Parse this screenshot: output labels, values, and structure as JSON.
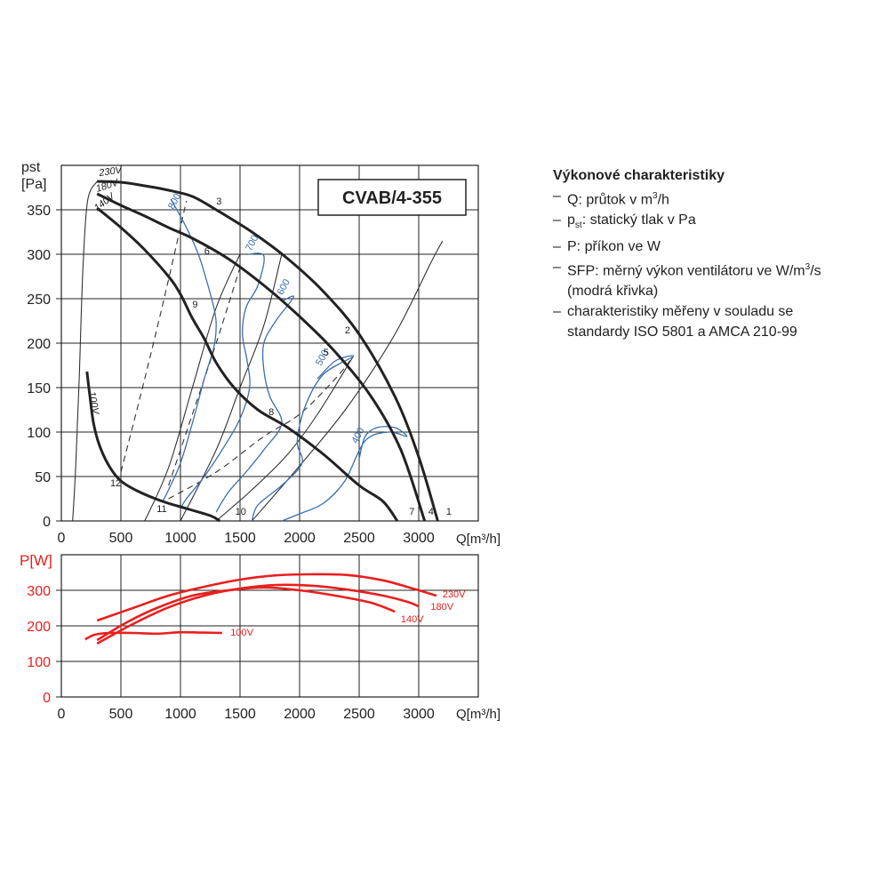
{
  "legend": {
    "title": "Výkonové charakteristiky",
    "items": [
      {
        "dash": "–",
        "pre": "Q: průtok v m",
        "sup": "3",
        "post": "/h",
        "cont": ""
      },
      {
        "dash": "–",
        "pre": "p",
        "sub": "st",
        "post": ": statický tlak v Pa",
        "cont": ""
      },
      {
        "dash": "–",
        "pre": "P: příkon ve W",
        "post": "",
        "cont": ""
      },
      {
        "dash": "–",
        "pre": "SFP: měrný výkon ventilátoru ve W/m",
        "sup": "3",
        "post": "/s",
        "cont": "(modrá křivka)"
      },
      {
        "dash": "–",
        "pre": "charakteristiky měřeny v souladu se",
        "post": "",
        "cont": "standardy ISO 5801 a AMCA 210-99"
      }
    ]
  },
  "chart_data": [
    {
      "type": "line",
      "title": "CVAB/4-355",
      "xlabel": "Q[m³/h]",
      "ylabel_top": "pst",
      "ylabel_bottom": "[Pa]",
      "xlim": [
        0,
        3500
      ],
      "ylim": [
        0,
        400
      ],
      "x_ticks": [
        "0",
        "500",
        "1000",
        "1500",
        "2000",
        "2500",
        "3000"
      ],
      "y_ticks": [
        "0",
        "50",
        "100",
        "150",
        "200",
        "250",
        "300",
        "350"
      ],
      "grid": true,
      "series": [
        {
          "name": "230V",
          "values": [
            [
              300,
              382
            ],
            [
              500,
              381
            ],
            [
              700,
              377
            ],
            [
              900,
              372
            ],
            [
              1100,
              365
            ],
            [
              1300,
              350
            ],
            [
              1600,
              325
            ],
            [
              1900,
              295
            ],
            [
              2200,
              258
            ],
            [
              2500,
              210
            ],
            [
              2800,
              140
            ],
            [
              3000,
              72
            ],
            [
              3160,
              0
            ]
          ]
        },
        {
          "name": "180V",
          "values": [
            [
              300,
              368
            ],
            [
              500,
              355
            ],
            [
              700,
              343
            ],
            [
              900,
              330
            ],
            [
              1100,
              318
            ],
            [
              1400,
              295
            ],
            [
              1700,
              265
            ],
            [
              2000,
              230
            ],
            [
              2300,
              190
            ],
            [
              2600,
              140
            ],
            [
              2850,
              80
            ],
            [
              3050,
              0
            ]
          ]
        },
        {
          "name": "140V",
          "values": [
            [
              300,
              352
            ],
            [
              500,
              330
            ],
            [
              700,
              305
            ],
            [
              900,
              275
            ],
            [
              1000,
              255
            ],
            [
              1100,
              228
            ],
            [
              1200,
              205
            ],
            [
              1300,
              178
            ],
            [
              1450,
              150
            ],
            [
              1650,
              125
            ],
            [
              1900,
              105
            ],
            [
              2200,
              75
            ],
            [
              2500,
              40
            ],
            [
              2700,
              22
            ],
            [
              2820,
              0
            ]
          ]
        },
        {
          "name": "100V",
          "values": [
            [
              215,
              168
            ],
            [
              240,
              140
            ],
            [
              270,
              110
            ],
            [
              320,
              85
            ],
            [
              400,
              62
            ],
            [
              500,
              45
            ],
            [
              650,
              33
            ],
            [
              850,
              22
            ],
            [
              1050,
              14
            ],
            [
              1250,
              6
            ],
            [
              1330,
              0
            ]
          ]
        }
      ],
      "sfp_curves": [
        {
          "name": "800",
          "values": [
            [
              920,
              362
            ],
            [
              1050,
              330
            ],
            [
              1150,
              300
            ],
            [
              1220,
              270
            ],
            [
              1280,
              240
            ],
            [
              1300,
              220
            ],
            [
              1280,
              195
            ],
            [
              1200,
              160
            ],
            [
              1100,
              110
            ],
            [
              1000,
              65
            ],
            [
              900,
              35
            ],
            [
              850,
              22
            ]
          ]
        },
        {
          "name": "700",
          "values": [
            [
              1570,
              300
            ],
            [
              1700,
              298
            ],
            [
              1650,
              265
            ],
            [
              1550,
              240
            ],
            [
              1520,
              210
            ],
            [
              1560,
              180
            ],
            [
              1580,
              150
            ],
            [
              1500,
              115
            ],
            [
              1350,
              80
            ],
            [
              1200,
              50
            ],
            [
              1050,
              25
            ],
            [
              1000,
              14
            ]
          ]
        },
        {
          "name": "600",
          "values": [
            [
              1850,
              247
            ],
            [
              1950,
              252
            ],
            [
              1800,
              225
            ],
            [
              1700,
              200
            ],
            [
              1700,
              170
            ],
            [
              1750,
              140
            ],
            [
              1850,
              110
            ],
            [
              1700,
              80
            ],
            [
              1550,
              55
            ],
            [
              1400,
              32
            ],
            [
              1300,
              10
            ]
          ]
        },
        {
          "name": "500",
          "values": [
            [
              2150,
              160
            ],
            [
              2300,
              180
            ],
            [
              2450,
              185
            ],
            [
              2200,
              165
            ],
            [
              2050,
              130
            ],
            [
              1980,
              90
            ],
            [
              2020,
              65
            ],
            [
              1850,
              40
            ],
            [
              1650,
              18
            ],
            [
              1600,
              0
            ]
          ]
        },
        {
          "name": "400",
          "values": [
            [
              2500,
              70
            ],
            [
              2550,
              95
            ],
            [
              2650,
              105
            ],
            [
              2800,
              105
            ],
            [
              2900,
              95
            ],
            [
              2750,
              100
            ],
            [
              2550,
              90
            ],
            [
              2380,
              45
            ],
            [
              2200,
              20
            ],
            [
              2000,
              8
            ],
            [
              1850,
              0
            ]
          ]
        }
      ],
      "system_curves": [
        {
          "name": "1",
          "style": "solid",
          "values": [
            [
              1600,
              0
            ],
            [
              2000,
              62
            ],
            [
              2400,
              128
            ],
            [
              2800,
              210
            ],
            [
              3100,
              290
            ],
            [
              3200,
              315
            ]
          ]
        },
        {
          "name": "2",
          "style": "solid",
          "values": [
            [
              1300,
              0
            ],
            [
              1600,
              35
            ],
            [
              1900,
              75
            ],
            [
              2150,
              120
            ],
            [
              2450,
              185
            ]
          ]
        },
        {
          "name": "3",
          "style": "solid",
          "values": [
            [
              1000,
              0
            ],
            [
              1300,
              80
            ],
            [
              1500,
              150
            ],
            [
              1700,
              220
            ],
            [
              1850,
              300
            ]
          ]
        },
        {
          "name": "4",
          "style": "solid",
          "values": [
            [
              700,
              0
            ],
            [
              900,
              60
            ],
            [
              1100,
              150
            ],
            [
              1300,
              240
            ],
            [
              1500,
              300
            ]
          ]
        },
        {
          "name": "5",
          "style": "dashed",
          "values": [
            [
              900,
              25
            ],
            [
              1300,
              55
            ],
            [
              1700,
              95
            ],
            [
              2000,
              120
            ],
            [
              2300,
              160
            ],
            [
              2450,
              185
            ]
          ]
        },
        {
          "name": "6",
          "style": "dashed",
          "values": [
            [
              900,
              40
            ],
            [
              1100,
              120
            ],
            [
              1300,
              200
            ],
            [
              1500,
              285
            ]
          ]
        },
        {
          "name": "7",
          "style": "dashed",
          "values": [
            [
              500,
              55
            ],
            [
              700,
              160
            ],
            [
              880,
              260
            ],
            [
              1050,
              360
            ]
          ]
        },
        {
          "name": "8",
          "style": "solid",
          "values": [
            [
              95,
              0
            ],
            [
              120,
              60
            ],
            [
              150,
              160
            ],
            [
              180,
              280
            ],
            [
              220,
              360
            ],
            [
              300,
              382
            ]
          ]
        }
      ],
      "point_labels": [
        {
          "text": "1",
          "x": 3230,
          "y": 7
        },
        {
          "text": "2",
          "x": 2380,
          "y": 211
        },
        {
          "text": "3",
          "x": 1300,
          "y": 356
        },
        {
          "text": "4",
          "x": 3080,
          "y": 7
        },
        {
          "text": "5",
          "x": 2200,
          "y": 186
        },
        {
          "text": "6",
          "x": 1200,
          "y": 300
        },
        {
          "text": "7",
          "x": 2920,
          "y": 7
        },
        {
          "text": "8",
          "x": 1740,
          "y": 119
        },
        {
          "text": "9",
          "x": 1100,
          "y": 240
        },
        {
          "text": "10",
          "x": 1460,
          "y": 7
        },
        {
          "text": "11",
          "x": 800,
          "y": 10
        },
        {
          "text": "12",
          "x": 410,
          "y": 39
        }
      ]
    },
    {
      "type": "line",
      "title": "",
      "xlabel": "Q[m³/h]",
      "ylabel": "P[W]",
      "xlim": [
        0,
        3500
      ],
      "ylim": [
        0,
        400
      ],
      "x_ticks": [
        "0",
        "500",
        "1000",
        "1500",
        "2000",
        "2500",
        "3000"
      ],
      "y_ticks": [
        "0",
        "100",
        "200",
        "300"
      ],
      "grid": true,
      "series": [
        {
          "name": "230V",
          "values": [
            [
              300,
              215
            ],
            [
              600,
              250
            ],
            [
              900,
              285
            ],
            [
              1200,
              310
            ],
            [
              1500,
              330
            ],
            [
              1800,
              342
            ],
            [
              2100,
              345
            ],
            [
              2400,
              343
            ],
            [
              2700,
              328
            ],
            [
              2950,
              305
            ],
            [
              3150,
              285
            ]
          ]
        },
        {
          "name": "180V",
          "values": [
            [
              300,
              150
            ],
            [
              600,
              205
            ],
            [
              900,
              252
            ],
            [
              1200,
              285
            ],
            [
              1500,
              305
            ],
            [
              1800,
              315
            ],
            [
              2100,
              313
            ],
            [
              2400,
              302
            ],
            [
              2700,
              285
            ],
            [
              2900,
              268
            ],
            [
              3000,
              255
            ]
          ]
        },
        {
          "name": "140V",
          "values": [
            [
              300,
              160
            ],
            [
              550,
              210
            ],
            [
              800,
              250
            ],
            [
              1100,
              285
            ],
            [
              1400,
              300
            ],
            [
              1700,
              308
            ],
            [
              2000,
              300
            ],
            [
              2300,
              285
            ],
            [
              2600,
              265
            ],
            [
              2800,
              240
            ]
          ]
        },
        {
          "name": "100V",
          "values": [
            [
              200,
              162
            ],
            [
              280,
              175
            ],
            [
              400,
              180
            ],
            [
              600,
              180
            ],
            [
              800,
              178
            ],
            [
              1000,
              182
            ],
            [
              1200,
              181
            ],
            [
              1350,
              180
            ]
          ]
        }
      ]
    }
  ],
  "colors": {
    "fan_curve": "#222222",
    "grid": "#222222",
    "sfp": "#3a6fb0",
    "power": "#e8201e",
    "power_axis": "#e8201e"
  }
}
